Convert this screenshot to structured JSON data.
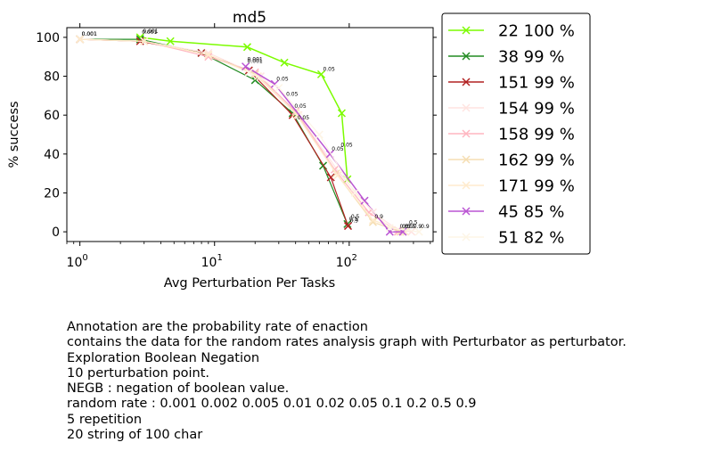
{
  "chart_data": {
    "type": "line",
    "title": "md5",
    "xlabel": "Avg Perturbation Per Tasks",
    "ylabel": "% success",
    "xscale": "log",
    "xlim": [
      0.8,
      420
    ],
    "ylim": [
      -5,
      105
    ],
    "xticks": [
      {
        "value": 1,
        "base": "10",
        "exp": "0"
      },
      {
        "value": 10,
        "base": "10",
        "exp": "1"
      },
      {
        "value": 100,
        "base": "10",
        "exp": "2"
      }
    ],
    "yticks": [
      0,
      20,
      40,
      60,
      80,
      100
    ],
    "grid": false,
    "legend_position": "outside-right",
    "series": [
      {
        "name": "22 100 %",
        "color": "#7cfc00",
        "marker": "x",
        "lw": 1.5,
        "x": [
          2.8,
          4.7,
          17.5,
          33,
          62,
          88,
          97
        ],
        "y": [
          100,
          98,
          95,
          87,
          81,
          61,
          27
        ],
        "labels": [
          "0.001",
          "",
          "",
          "",
          "0.05",
          "",
          ""
        ]
      },
      {
        "name": "38 99 %",
        "color": "#228b22",
        "marker": "x",
        "lw": 1.2,
        "x": [
          1,
          2.8,
          8,
          20,
          38,
          64,
          97
        ],
        "y": [
          99,
          99,
          92,
          78,
          61,
          34,
          4
        ],
        "labels": [
          "0.001",
          "",
          "",
          "",
          "",
          "",
          "0.5"
        ]
      },
      {
        "name": "151 99 %",
        "color": "#b22222",
        "marker": "x",
        "lw": 1.2,
        "x": [
          1,
          2.8,
          8,
          18,
          38,
          73,
          98
        ],
        "y": [
          99,
          98,
          92,
          83,
          60,
          28,
          3
        ],
        "labels": [
          "0.001",
          "",
          "",
          "",
          "",
          "",
          "0.9"
        ]
      },
      {
        "name": "154 99 %",
        "color": "#ffe4e1",
        "marker": "x",
        "lw": 1.2,
        "x": [
          1,
          3,
          9,
          22,
          42,
          85,
          150,
          230,
          290
        ],
        "y": [
          99,
          98,
          92,
          80,
          60,
          30,
          10,
          1,
          0
        ],
        "labels": [
          "",
          "",
          "",
          "",
          "",
          "",
          "",
          "",
          "0.9"
        ]
      },
      {
        "name": "158 99 %",
        "color": "#ffb6c1",
        "marker": "x",
        "lw": 1.2,
        "x": [
          1,
          3,
          9,
          20,
          40,
          78,
          140,
          230
        ],
        "y": [
          99,
          98,
          90,
          82,
          62,
          32,
          10,
          0
        ],
        "labels": [
          "",
          "",
          "",
          "",
          "",
          "",
          "",
          "0.5"
        ]
      },
      {
        "name": "162 99 %",
        "color": "#f5deb3",
        "marker": "x",
        "lw": 1.2,
        "x": [
          1,
          3,
          9,
          20,
          40,
          80,
          150,
          240
        ],
        "y": [
          99,
          98,
          91,
          81,
          61,
          30,
          5,
          0
        ],
        "labels": [
          "",
          "",
          "",
          "",
          "",
          "",
          "",
          "0.5"
        ]
      },
      {
        "name": "171 99 %",
        "color": "#ffebcd",
        "marker": "x",
        "lw": 1.2,
        "x": [
          1,
          3,
          9,
          21,
          41,
          82,
          150,
          260
        ],
        "y": [
          99,
          98,
          91,
          80,
          60,
          29,
          6,
          0
        ],
        "labels": [
          "",
          "",
          "",
          "",
          "",
          "",
          "",
          "0.5"
        ]
      },
      {
        "name": "45 85 %",
        "color": "#ba55d3",
        "marker": "x",
        "lw": 1.5,
        "x": [
          17,
          28,
          72,
          130,
          200,
          250
        ],
        "y": [
          85,
          76,
          40,
          16,
          0,
          0
        ],
        "labels": [
          "0.001",
          "0.05",
          "0.05",
          "",
          "",
          "0.5"
        ]
      },
      {
        "name": "51 82 %",
        "color": "#fdf5e6",
        "marker": "x",
        "lw": 1.2,
        "x": [
          18,
          30,
          60,
          110,
          200,
          330
        ],
        "y": [
          82,
          74,
          50,
          20,
          2,
          0
        ],
        "labels": [
          "",
          "",
          "",
          "",
          "",
          "0.9"
        ]
      }
    ],
    "extra_labels": [
      {
        "x": 2.85,
        "y": 100.5,
        "text": "0.001"
      },
      {
        "x": 17,
        "y": 86,
        "text": "0.001"
      },
      {
        "x": 33,
        "y": 68,
        "text": "0.05"
      },
      {
        "x": 38,
        "y": 62,
        "text": "0.05"
      },
      {
        "x": 40,
        "y": 56,
        "text": "0.05"
      },
      {
        "x": 84,
        "y": 42,
        "text": "0.05"
      },
      {
        "x": 100,
        "y": 5,
        "text": "0.5"
      },
      {
        "x": 150,
        "y": 5,
        "text": "0.9"
      },
      {
        "x": 270,
        "y": 2,
        "text": "0.5"
      }
    ]
  },
  "caption": [
    "Annotation are the probability rate of enaction",
    "contains the data for the random rates analysis graph with Perturbator as perturbator.",
    "Exploration Boolean Negation",
    "10 perturbation point.",
    "NEGB : negation of boolean value.",
    "random rate : 0.001 0.002 0.005 0.01 0.02 0.05 0.1 0.2 0.5 0.9",
    "5 repetition",
    "20 string of 100 char"
  ]
}
